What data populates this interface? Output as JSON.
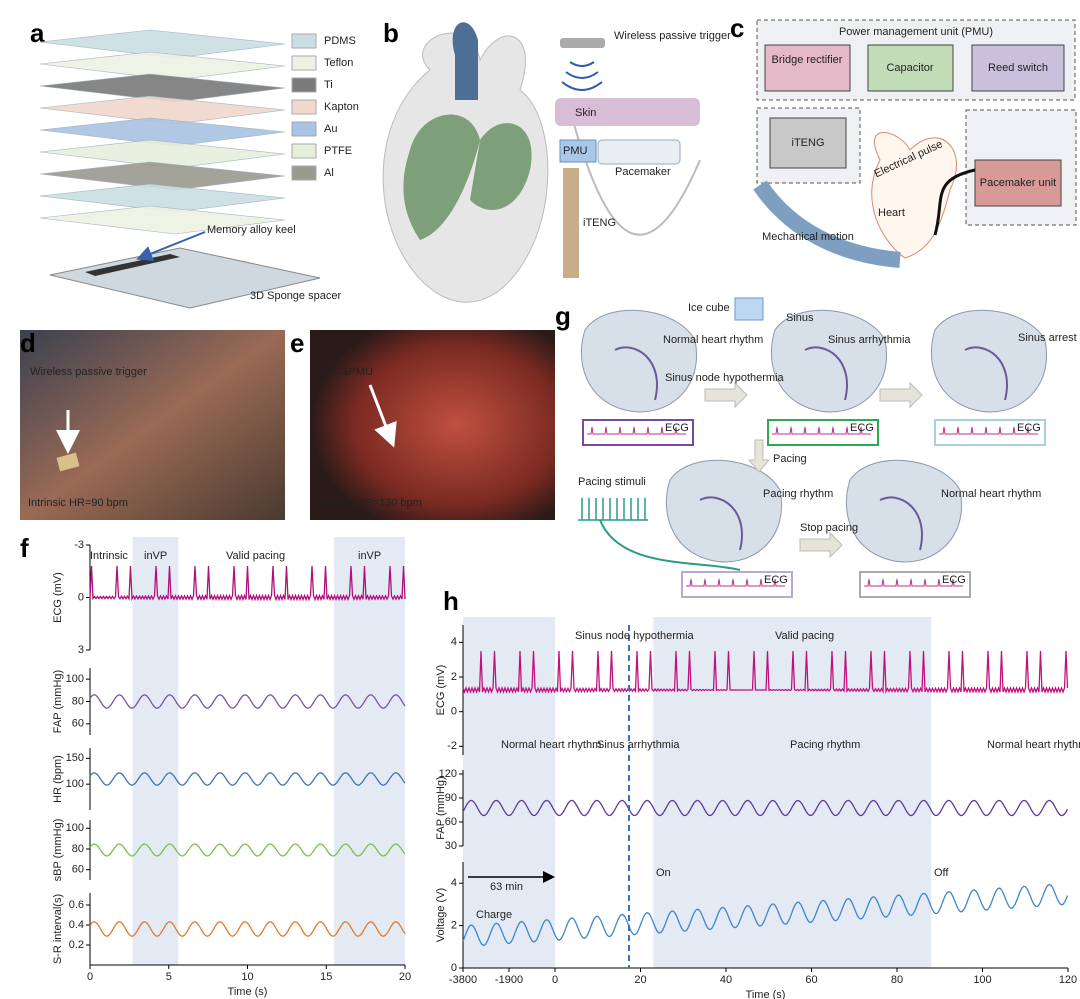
{
  "panel_labels": [
    "a",
    "b",
    "c",
    "d",
    "e",
    "f",
    "g",
    "h"
  ],
  "a": {
    "layers": [
      "PDMS",
      "Teflon",
      "Ti",
      "Kapton",
      "Au",
      "PTFE",
      "Al"
    ],
    "layer_colors": [
      "#c9dfe3",
      "#eef2e4",
      "#7a7a7a",
      "#f0d8cc",
      "#a9c3e3",
      "#e6efdc",
      "#9a9a8e"
    ],
    "keel": "Memory alloy keel",
    "spacer": "3D Sponge spacer"
  },
  "b": {
    "trigger": "Wireless passive trigger",
    "skin": "Skin",
    "pmu": "PMU",
    "pacemaker": "Pacemaker",
    "iteng": "iTENG"
  },
  "c": {
    "title": "Power management unit (PMU)",
    "bridge": "Bridge rectifier",
    "capacitor": "Capacitor",
    "reed": "Reed switch",
    "iteng": "iTENG",
    "pulse": "Electrical pulse",
    "pacemaker": "Pacemaker unit",
    "heart": "Heart",
    "motion": "Mechanical motion"
  },
  "d": {
    "label": "Wireless passive trigger",
    "hr": "Intrinsic HR=90 bpm"
  },
  "e": {
    "label": "EHU&PMU",
    "hr": "Pacing HR=130 bpm"
  },
  "f": {
    "phases": [
      "Intrinsic",
      "inVP",
      "Valid pacing",
      "inVP"
    ],
    "xlim": [
      0,
      20
    ],
    "xticks": [
      0,
      5,
      10,
      15,
      20
    ],
    "xlabel": "Time (s)",
    "shade": [
      [
        2.7,
        5.6
      ],
      [
        15.5,
        20
      ]
    ],
    "panels": [
      {
        "ylabel": "ECG (mV)",
        "ylim": [
          3,
          -3
        ],
        "yticks": [
          -3,
          0,
          3
        ],
        "color": "#b0107a"
      },
      {
        "ylabel": "FAP (mmHg)",
        "ylim": [
          50,
          110
        ],
        "yticks": [
          100,
          80,
          60
        ],
        "color": "#7a52a8"
      },
      {
        "ylabel": "HR (bpm)",
        "ylim": [
          50,
          170
        ],
        "yticks": [
          150,
          100
        ],
        "color": "#3f72b8"
      },
      {
        "ylabel": "sBP (mmHg)",
        "ylim": [
          50,
          108
        ],
        "yticks": [
          100,
          80,
          60
        ],
        "color": "#7cbf4e"
      },
      {
        "ylabel": "S-R interval(s)",
        "ylim": [
          0,
          0.72
        ],
        "yticks": [
          0.6,
          0.4,
          0.2
        ],
        "color": "#e07a2e"
      }
    ]
  },
  "g": {
    "ice": "Ice cube",
    "sinus": "Sinus",
    "normal1": "Normal heart rhythm",
    "arrhythmia": "Sinus arrhythmia",
    "arrest": "Sinus arrest",
    "hypothermia": "Sinus node hypothermia",
    "ecg": [
      "ECG",
      "ECG",
      "ECG",
      "ECG",
      "ECG"
    ],
    "pacing": "Pacing",
    "stimuli": "Pacing stimuli",
    "pacing_rhythm": "Pacing rhythm",
    "normal2": "Normal heart rhythm",
    "stop": "Stop pacing"
  },
  "h": {
    "xlim": [
      -3800,
      120
    ],
    "xbreak": 0,
    "xticks": [
      -3800,
      -1900,
      0,
      20,
      40,
      60,
      80,
      100,
      120
    ],
    "xlabel": "Time (s)",
    "shade": [
      [
        -3800,
        0
      ],
      [
        23,
        88
      ]
    ],
    "annotations": {
      "hypothermia": "Sinus node hypothermia",
      "valid": "Valid pacing",
      "normal1": "Normal heart rhythm",
      "arrhythmia": "Sinus arrhythmia",
      "pacing_rhythm": "Pacing rhythm",
      "normal2": "Normal heart rhythm",
      "min": "63 min",
      "charge": "Charge",
      "on": "On",
      "off": "Off"
    },
    "panels": [
      {
        "ylabel": "ECG (mV)",
        "ylim": [
          -2.5,
          5
        ],
        "yticks": [
          4,
          2,
          0,
          -2
        ],
        "color": "#c2107f"
      },
      {
        "ylabel": "FAP (mmHg)",
        "ylim": [
          30,
          125
        ],
        "yticks": [
          120,
          90,
          60,
          30
        ],
        "color": "#5b3a9a"
      },
      {
        "ylabel": "Voltage (V)",
        "ylim": [
          0,
          5
        ],
        "yticks": [
          4,
          2,
          0
        ],
        "color": "#3d86cf"
      }
    ]
  }
}
